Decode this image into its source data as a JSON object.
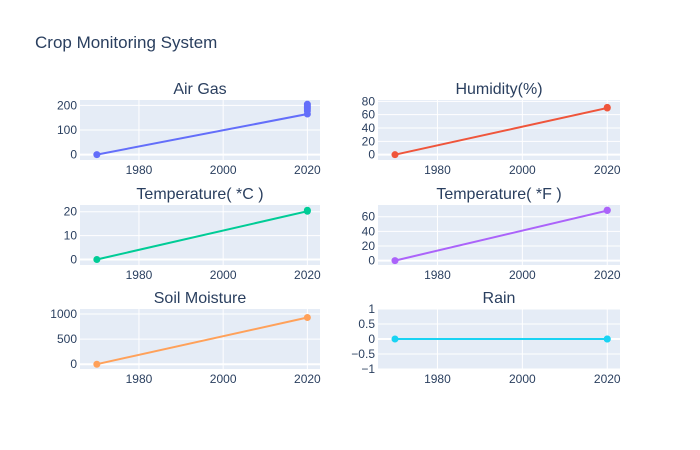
{
  "title": "Crop Monitoring System",
  "colors": {
    "plot_bg": "#e5ecf6",
    "grid": "#ffffff",
    "text": "#2a3f5f"
  },
  "chart_data": [
    {
      "type": "line",
      "title": "Air Gas",
      "x_ticks": [
        1980,
        2000,
        2020
      ],
      "y_ticks": [
        0,
        100,
        200
      ],
      "xlim": [
        1966,
        2023
      ],
      "ylim": [
        -22,
        222
      ],
      "series": [
        {
          "color": "#636efa",
          "x": [
            1970,
            2020,
            2020,
            2020,
            2020,
            2020,
            2020
          ],
          "y": [
            0,
            165,
            178,
            186,
            192,
            198,
            205
          ]
        }
      ]
    },
    {
      "type": "line",
      "title": "Humidity(%)",
      "x_ticks": [
        1980,
        2000,
        2020
      ],
      "y_ticks": [
        0,
        20,
        40,
        60,
        80
      ],
      "xlim": [
        1966,
        2023
      ],
      "ylim": [
        -8,
        82
      ],
      "series": [
        {
          "color": "#ef553b",
          "x": [
            1970,
            2020,
            2020
          ],
          "y": [
            0,
            70,
            71
          ]
        }
      ]
    },
    {
      "type": "line",
      "title": "Temperature( *C )",
      "x_ticks": [
        1980,
        2000,
        2020
      ],
      "y_ticks": [
        0,
        10,
        20
      ],
      "xlim": [
        1966,
        2023
      ],
      "ylim": [
        -2.3,
        22.8
      ],
      "series": [
        {
          "color": "#00cc96",
          "x": [
            1970,
            2020,
            2020
          ],
          "y": [
            0,
            20.2,
            20.6
          ]
        }
      ]
    },
    {
      "type": "line",
      "title": "Temperature( *F )",
      "x_ticks": [
        1980,
        2000,
        2020
      ],
      "y_ticks": [
        0,
        20,
        40,
        60
      ],
      "xlim": [
        1966,
        2023
      ],
      "ylim": [
        -6,
        76
      ],
      "series": [
        {
          "color": "#ab63fa",
          "x": [
            1970,
            2020,
            2020
          ],
          "y": [
            0,
            68.4,
            69
          ]
        }
      ]
    },
    {
      "type": "line",
      "title": "Soil Moisture",
      "x_ticks": [
        1980,
        2000,
        2020
      ],
      "y_ticks": [
        0,
        500,
        1000
      ],
      "xlim": [
        1966,
        2023
      ],
      "ylim": [
        -95,
        1100
      ],
      "series": [
        {
          "color": "#ffa15a",
          "x": [
            1970,
            2020
          ],
          "y": [
            0,
            930
          ]
        }
      ]
    },
    {
      "type": "line",
      "title": "Rain",
      "x_ticks": [
        1980,
        2000,
        2020
      ],
      "y_ticks": [
        -1,
        -0.5,
        0,
        0.5,
        1
      ],
      "y_tick_labels": [
        "−1",
        "−0.5",
        "0",
        "0.5",
        "1"
      ],
      "xlim": [
        1966,
        2023
      ],
      "ylim": [
        -1,
        1
      ],
      "series": [
        {
          "color": "#19d3f3",
          "x": [
            1970,
            2020,
            2020
          ],
          "y": [
            0,
            0,
            0
          ]
        }
      ]
    }
  ]
}
